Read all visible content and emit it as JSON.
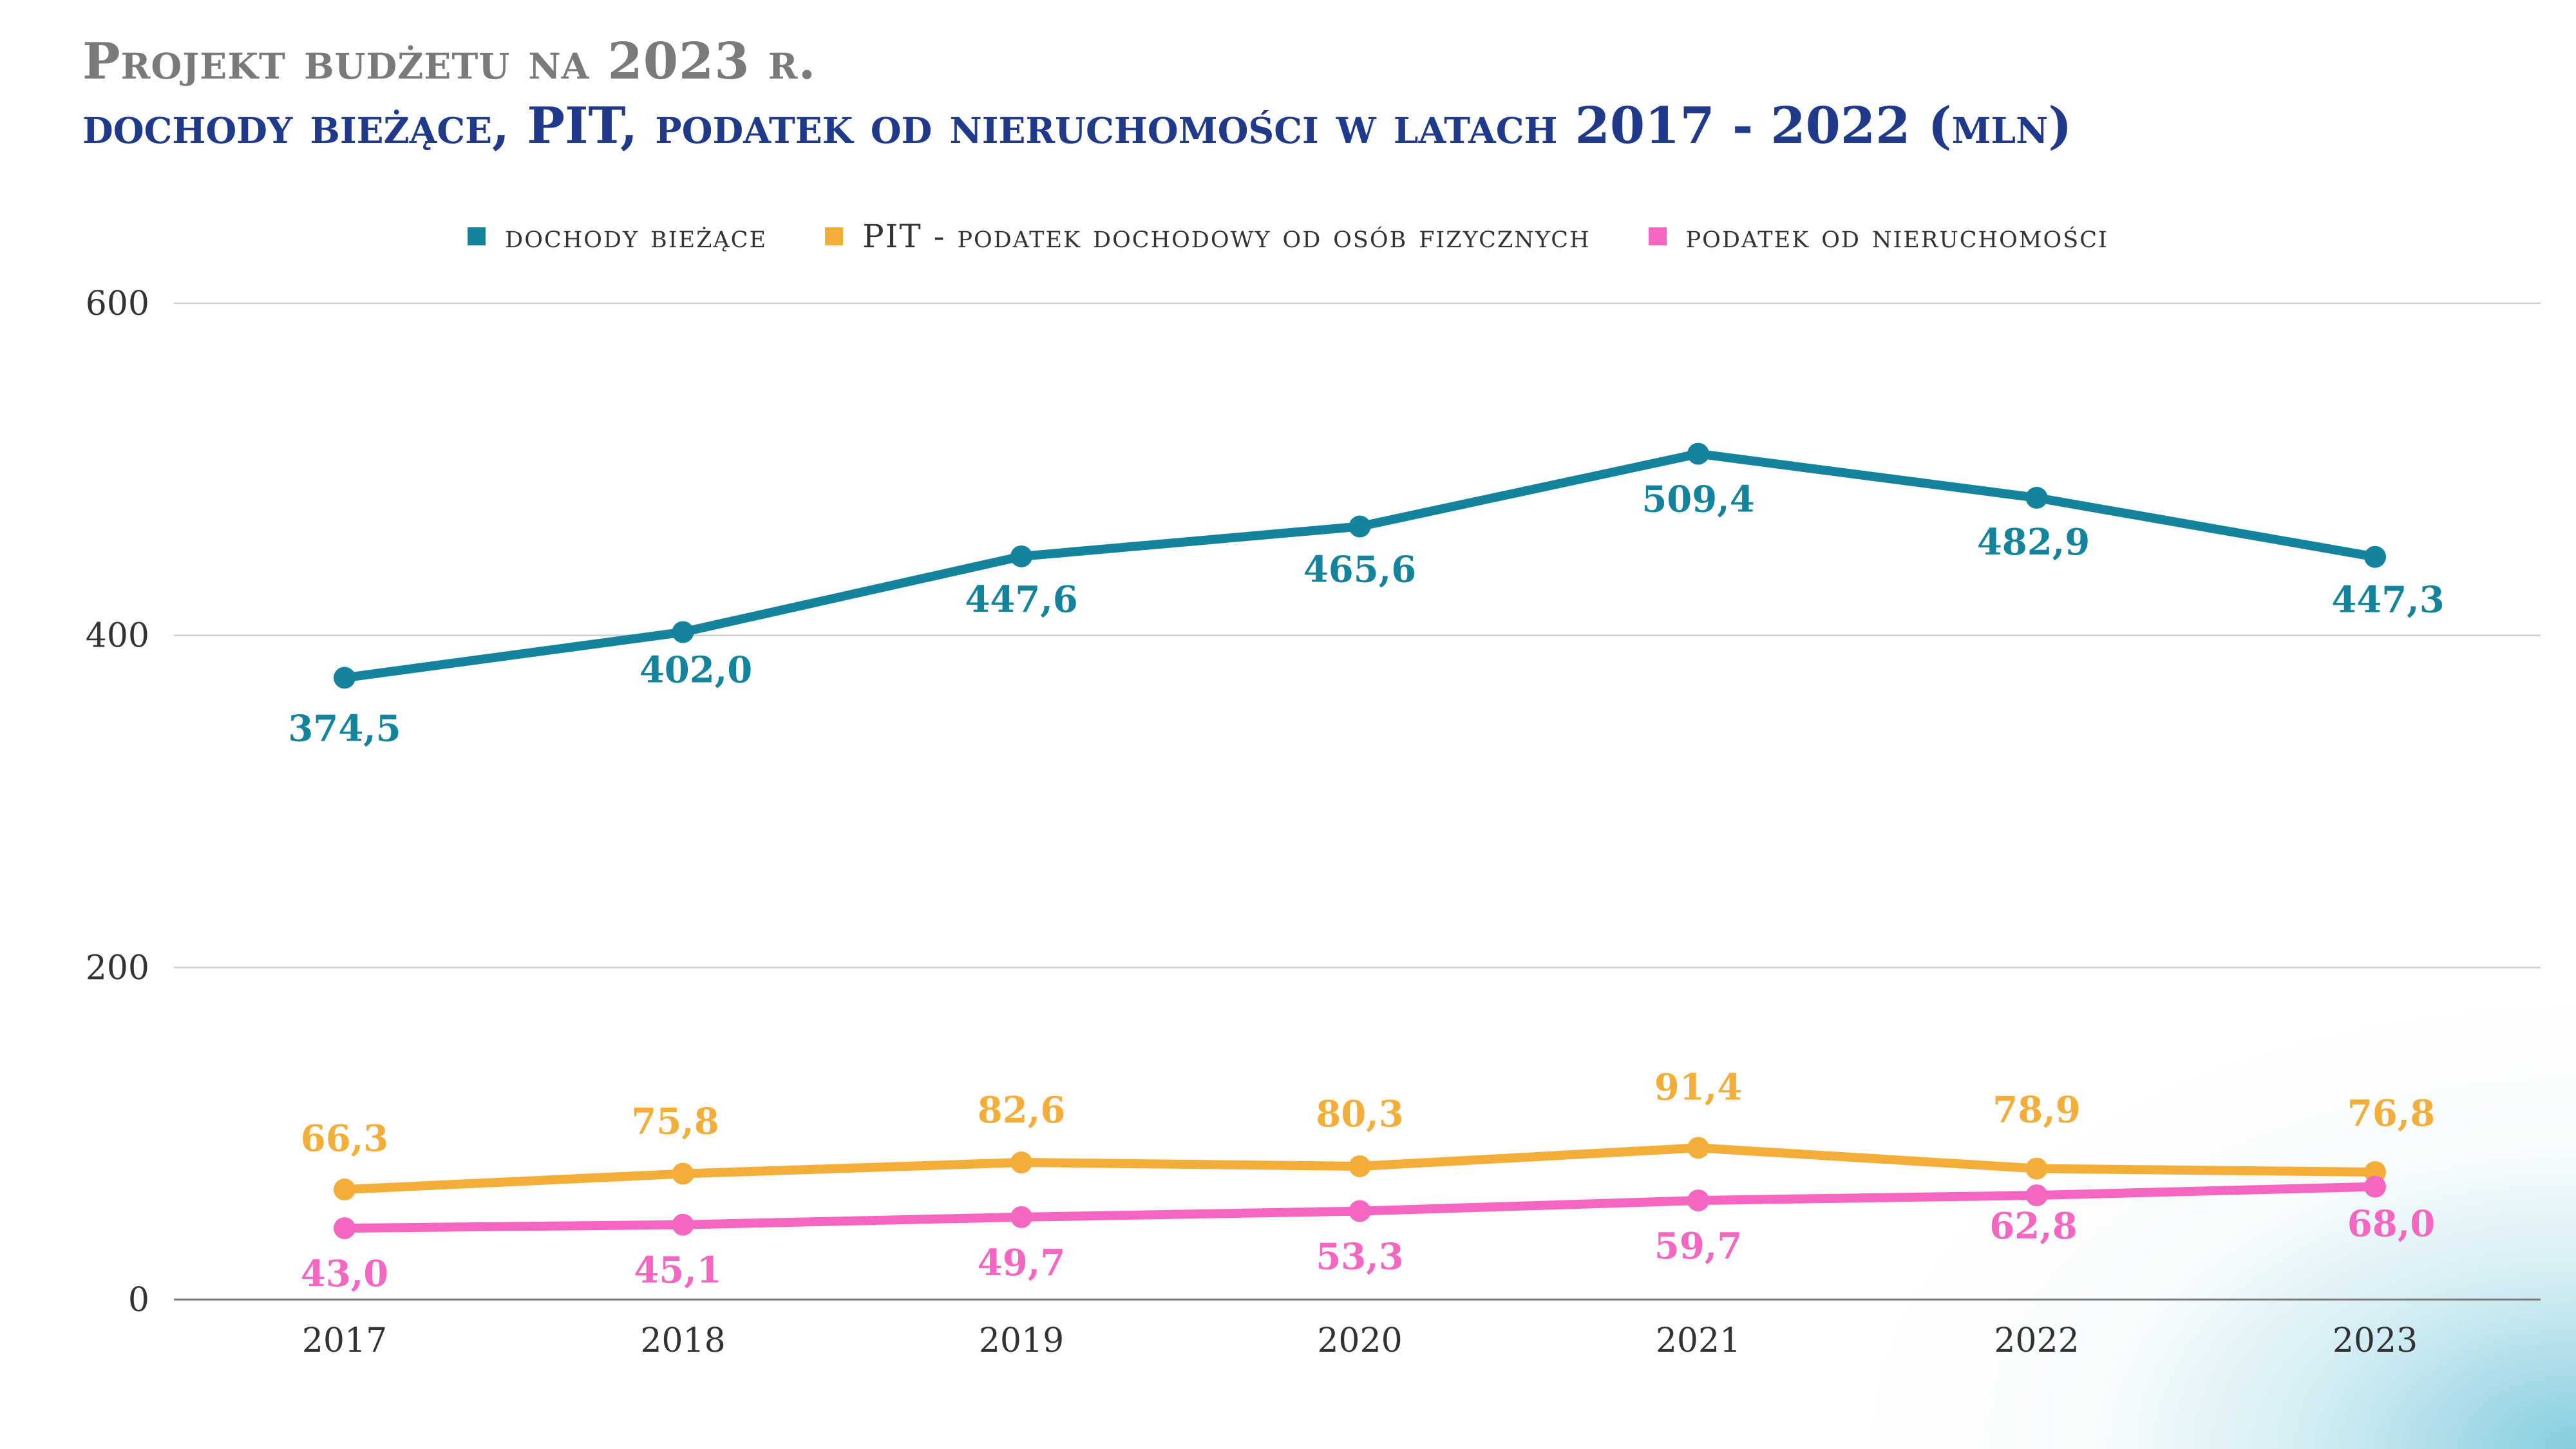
{
  "title": "Projekt budżetu na 2023 r.",
  "subtitle": "dochody bieżące, PIT, podatek od nieruchomości w latach 2017 - 2022 (mln)",
  "chart_data": {
    "type": "line",
    "x": [
      "2017",
      "2018",
      "2019",
      "2020",
      "2021",
      "2022",
      "2023"
    ],
    "ylim": [
      0,
      600
    ],
    "yticks": [
      0,
      200,
      400,
      600
    ],
    "grid": true,
    "legend_position": "top",
    "series": [
      {
        "name": "dochody bieżące",
        "color": "#13849b",
        "values": [
          374.5,
          402.0,
          447.6,
          465.6,
          509.4,
          482.9,
          447.3
        ],
        "labels": [
          "374,5",
          "402,0",
          "447,6",
          "465,6",
          "509,4",
          "482,9",
          "447,3"
        ]
      },
      {
        "name": "PIT -  podatek dochodowy od osób fizycznych",
        "color": "#f3ae3a",
        "values": [
          66.3,
          75.8,
          82.6,
          80.3,
          91.4,
          78.9,
          76.8
        ],
        "labels": [
          "66,3",
          "75,8",
          "82,6",
          "80,3",
          "91,4",
          "78,9",
          "76,8"
        ]
      },
      {
        "name": "podatek od nieruchomości",
        "color": "#f566c3",
        "values": [
          43.0,
          45.1,
          49.7,
          53.3,
          59.7,
          62.8,
          68.0
        ],
        "labels": [
          "43,0",
          "45,1",
          "49,7",
          "53,3",
          "59,7",
          "62,8",
          "68,0"
        ]
      }
    ]
  }
}
